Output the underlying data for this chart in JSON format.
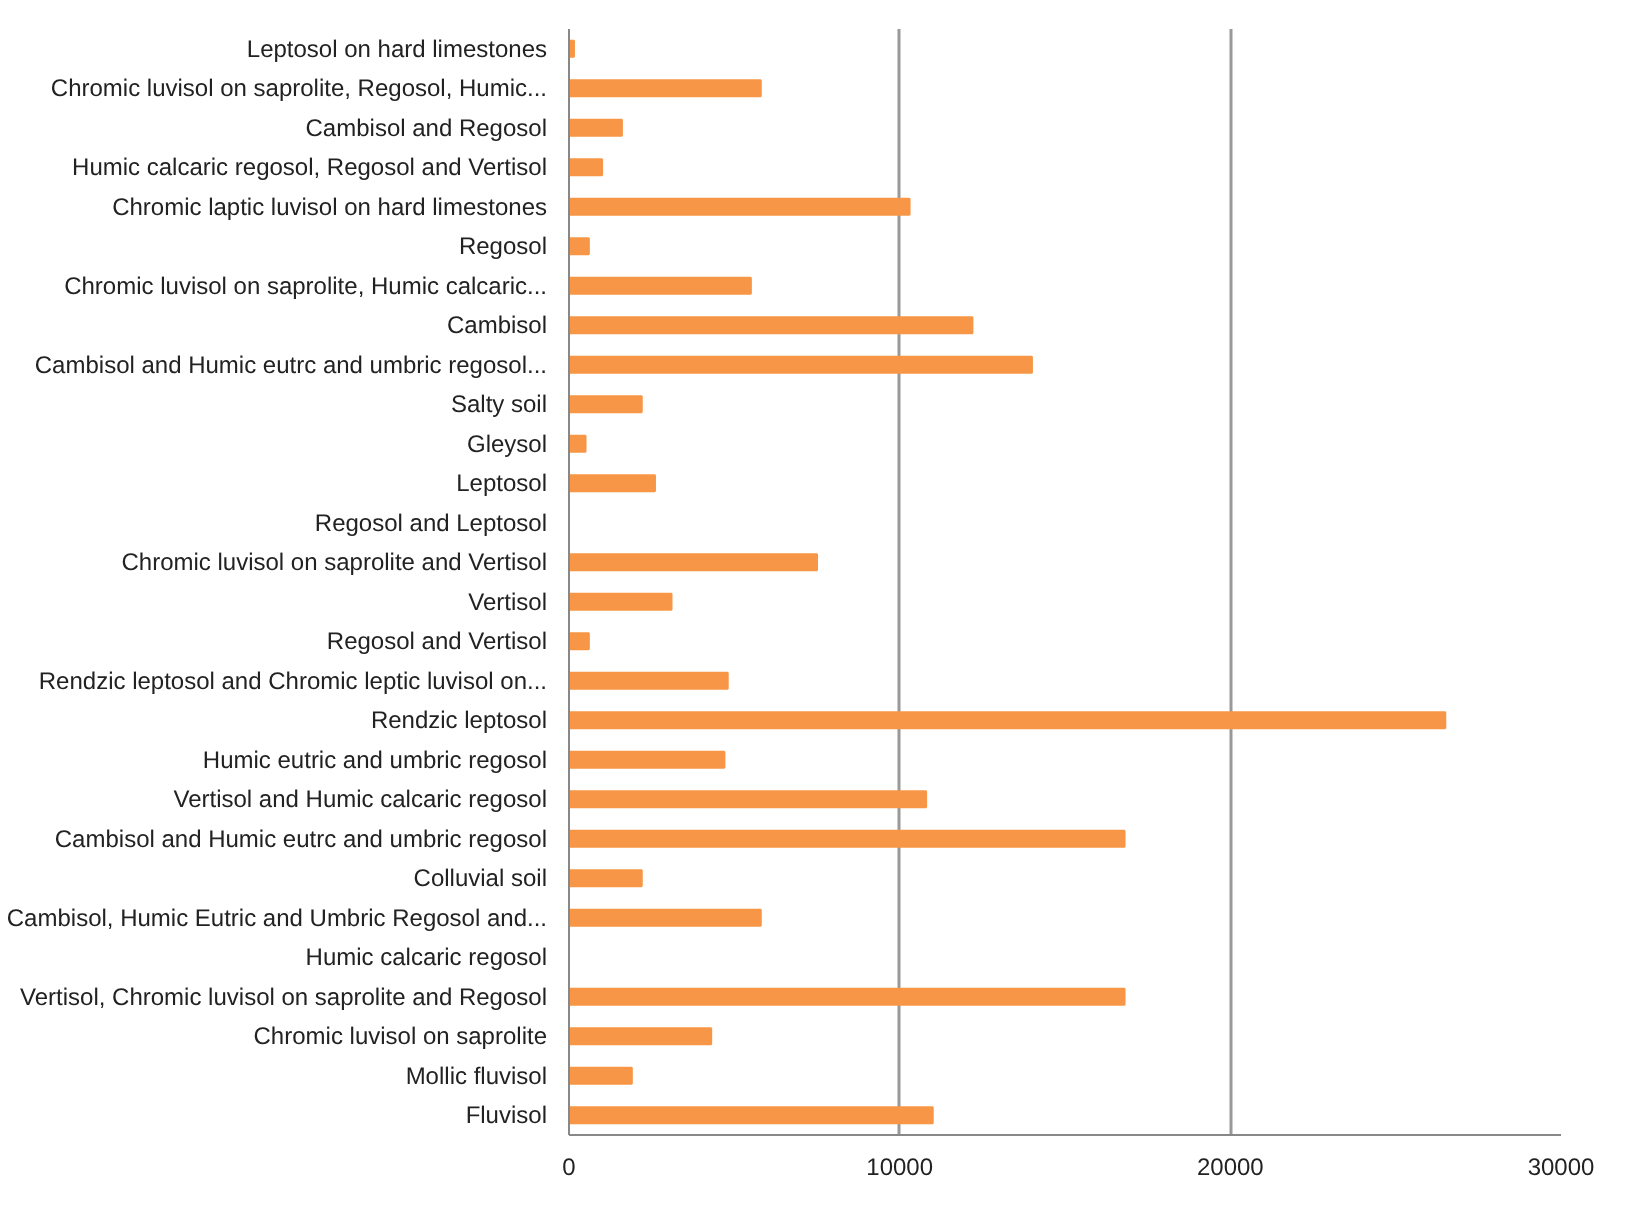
{
  "chart_data": {
    "type": "bar",
    "orientation": "horizontal",
    "categories": [
      "Leptosol on hard limestones",
      "Chromic luvisol on saprolite, Regosol, Humic...",
      "Cambisol and Regosol",
      "Humic calcaric regosol, Regosol and Vertisol",
      "Chromic laptic luvisol on hard limestones",
      "Regosol",
      "Chromic luvisol on saprolite, Humic calcaric...",
      "Cambisol",
      "Cambisol and Humic eutrc and umbric regosol...",
      "Salty soil",
      "Gleysol",
      "Leptosol",
      "Regosol and Leptosol",
      "Chromic luvisol on saprolite and Vertisol",
      "Vertisol",
      "Regosol and Vertisol",
      "Rendzic leptosol and Chromic leptic luvisol on...",
      "Rendzic leptosol",
      "Humic eutric and umbric regosol",
      "Vertisol and Humic calcaric regosol",
      "Cambisol and Humic eutrc and umbric regosol",
      "Colluvial soil",
      "Cambisol, Humic Eutric and Umbric Regosol and...",
      "Humic calcaric regosol",
      "Vertisol, Chromic luvisol on saprolite and Regosol",
      "Chromic luvisol on saprolite",
      "Mollic fluvisol",
      "Fluvisol"
    ],
    "values": [
      150,
      5800,
      1600,
      1000,
      10300,
      600,
      5500,
      12200,
      14000,
      2200,
      500,
      2600,
      0,
      7500,
      3100,
      600,
      4800,
      26500,
      4700,
      10800,
      16800,
      2200,
      5800,
      0,
      16800,
      4300,
      1900,
      11000
    ],
    "color": "#f79646",
    "xlim": [
      0,
      30000
    ],
    "xticks": [
      0,
      10000,
      20000,
      30000
    ],
    "grid": "x"
  }
}
